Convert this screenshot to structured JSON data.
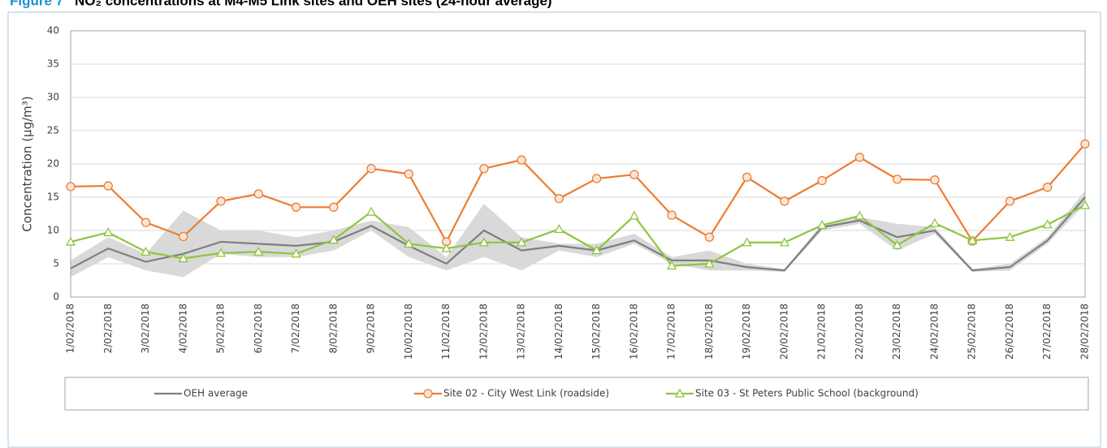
{
  "chart_data": {
    "type": "line",
    "figure_label": "Figure 7",
    "title": "NO₂ concentrations at M4-M5 Link sites and OEH sites (24-hour average)",
    "y_label": "Concentration (µg/m³)",
    "categories": [
      "1/02/2018",
      "2/02/2018",
      "3/02/2018",
      "4/02/2018",
      "5/02/2018",
      "6/02/2018",
      "7/02/2018",
      "8/02/2018",
      "9/02/2018",
      "10/02/2018",
      "11/02/2018",
      "12/02/2018",
      "13/02/2018",
      "14/02/2018",
      "15/02/2018",
      "16/02/2018",
      "17/02/2018",
      "18/02/2018",
      "19/02/2018",
      "20/02/2018",
      "21/02/2018",
      "22/02/2018",
      "23/02/2018",
      "24/02/2018",
      "25/02/2018",
      "26/02/2018",
      "27/02/2018",
      "28/02/2018"
    ],
    "band": {
      "color": "#d9d9d9",
      "low": [
        3,
        6,
        4,
        3,
        6.5,
        6,
        6,
        7,
        10,
        6,
        4,
        6,
        4,
        7,
        6,
        8,
        5,
        4,
        4,
        3.8,
        10,
        11,
        7,
        9.5,
        3.8,
        4,
        8,
        14
      ],
      "high": [
        5.5,
        9,
        6.5,
        13,
        10,
        10,
        9,
        10,
        11.5,
        10.5,
        6,
        14,
        9,
        8,
        8,
        9.5,
        6,
        7,
        5,
        4.2,
        11,
        12,
        11,
        10.5,
        4.2,
        5,
        9,
        16
      ]
    },
    "series": [
      {
        "name": "OEH average",
        "color": "#7f7f7f",
        "marker": "none",
        "values": [
          4.3,
          7.3,
          5.3,
          6.5,
          8.3,
          8.0,
          7.7,
          8.3,
          10.7,
          7.7,
          5.0,
          10.0,
          7.0,
          7.7,
          7.0,
          8.5,
          5.5,
          5.5,
          4.5,
          4.0,
          10.5,
          11.5,
          9.0,
          10.0,
          4.0,
          4.5,
          8.5,
          15.0
        ]
      },
      {
        "name": "Site 02 - City West Link (roadside)",
        "color": "#ed7d31",
        "marker": "circle",
        "values": [
          16.6,
          16.7,
          11.2,
          9.1,
          14.4,
          15.5,
          13.5,
          13.5,
          19.3,
          18.5,
          8.3,
          19.3,
          20.6,
          14.8,
          17.8,
          18.4,
          12.3,
          9.0,
          18.0,
          14.4,
          17.5,
          21.0,
          17.7,
          17.6,
          8.4,
          14.4,
          16.5,
          23.0
        ]
      },
      {
        "name": "Site 03 - St Peters Public School (background)",
        "color": "#8dc63f",
        "marker": "triangle",
        "values": [
          8.3,
          9.7,
          6.8,
          5.8,
          6.6,
          6.8,
          6.5,
          8.6,
          12.8,
          8.0,
          7.3,
          8.2,
          8.2,
          10.2,
          7.0,
          12.2,
          4.7,
          5.0,
          8.2,
          8.2,
          10.8,
          12.2,
          7.8,
          11.1,
          8.5,
          9.0,
          10.9,
          13.8
        ]
      }
    ],
    "ylim": [
      0,
      40
    ],
    "yticks": [
      0,
      5,
      10,
      15,
      20,
      25,
      30,
      35,
      40
    ],
    "grid": true
  }
}
